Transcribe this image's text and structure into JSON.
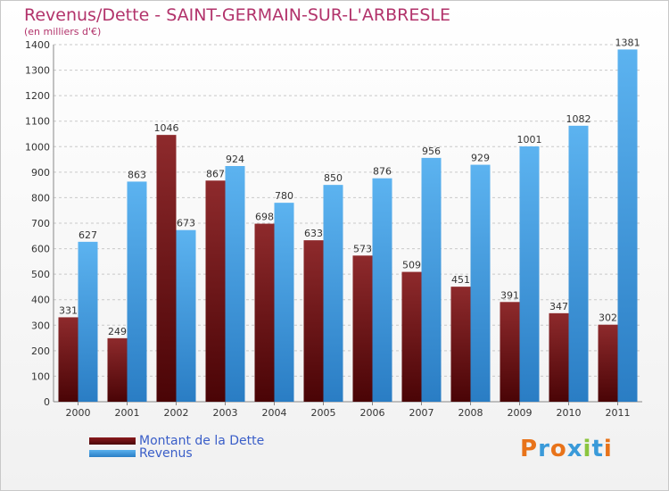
{
  "title": "Revenus/Dette - SAINT-GERMAIN-SUR-L'ARBRESLE",
  "subtitle": "(en milliers d'€)",
  "logo": {
    "text": "Proxiti",
    "colors": [
      "#e8731a",
      "#3a9ad9",
      "#e8731a",
      "#3a9ad9",
      "#8bc53f",
      "#3a9ad9",
      "#e8731a"
    ]
  },
  "colors": {
    "debt": "#6e0f12",
    "revenue": "#3a96dd",
    "title": "#b2336b"
  },
  "chart_data": {
    "type": "bar",
    "title": "Revenus/Dette - SAINT-GERMAIN-SUR-L'ARBRESLE",
    "ylabel": "(en milliers d'€)",
    "ylim": [
      0,
      1400
    ],
    "yticks": [
      0,
      100,
      200,
      300,
      400,
      500,
      600,
      700,
      800,
      900,
      1000,
      1100,
      1200,
      1300,
      1400
    ],
    "grid": true,
    "legend": "bottom-left",
    "categories": [
      "2000",
      "2001",
      "2002",
      "2003",
      "2004",
      "2005",
      "2006",
      "2007",
      "2008",
      "2009",
      "2010",
      "2011"
    ],
    "series": [
      {
        "name": "Montant de la Dette",
        "values": [
          331,
          249,
          1046,
          867,
          698,
          633,
          573,
          509,
          451,
          391,
          347,
          302
        ]
      },
      {
        "name": "Revenus",
        "values": [
          627,
          863,
          673,
          924,
          780,
          850,
          876,
          956,
          929,
          1001,
          1082,
          1381
        ]
      }
    ]
  }
}
